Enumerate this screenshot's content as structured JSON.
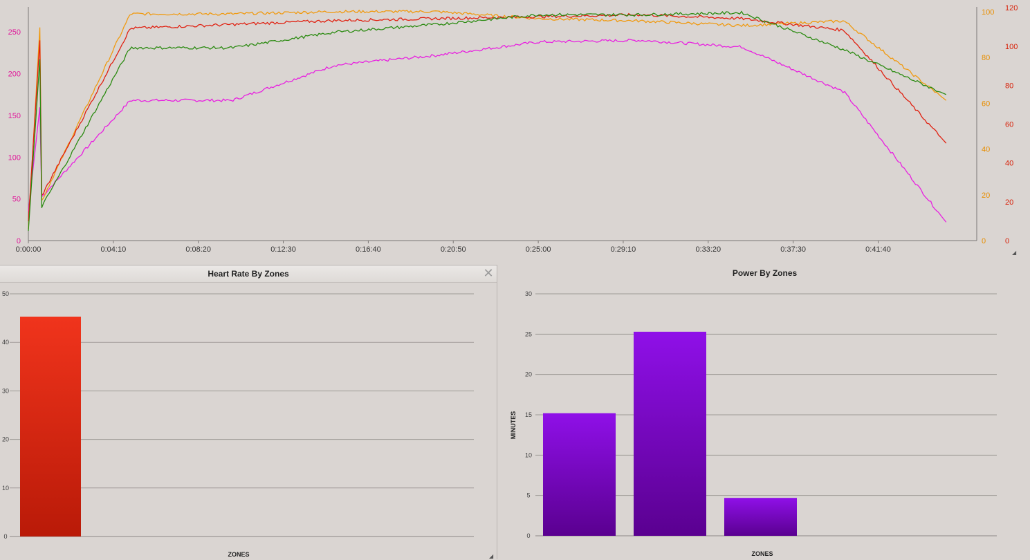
{
  "top_chart": {
    "x_ticks": [
      "0:00:00",
      "0:04:10",
      "0:08:20",
      "0:12:30",
      "0:16:40",
      "0:20:50",
      "0:25:00",
      "0:29:10",
      "0:33:20",
      "0:37:30",
      "0:41:40"
    ],
    "left_axis": {
      "ticks": [
        "0",
        "50",
        "100",
        "150",
        "200",
        "250"
      ],
      "color": "#e0189a"
    },
    "right_axis_1": {
      "ticks": [
        "0",
        "20",
        "40",
        "60",
        "80",
        "100"
      ],
      "color": "#e88e00"
    },
    "right_axis_2": {
      "ticks": [
        "0",
        "20",
        "40",
        "60",
        "80",
        "100",
        "120"
      ],
      "color": "#d81e06"
    },
    "series_colors": {
      "power": "#e820e0",
      "cadence": "#f09a10",
      "heart_rate": "#e02010",
      "speed": "#2a8a10"
    }
  },
  "hr_panel": {
    "title": "Heart Rate By Zones",
    "close_icon": "close-icon",
    "xlabel": "ZONES",
    "y_ticks": [
      "0",
      "10",
      "20",
      "30",
      "40",
      "50"
    ]
  },
  "power_panel": {
    "title": "Power By Zones",
    "xlabel": "ZONES",
    "ylabel": "MINUTES",
    "y_ticks": [
      "0",
      "5",
      "10",
      "15",
      "20",
      "25",
      "30"
    ]
  },
  "chart_data": [
    {
      "type": "line",
      "x": [
        0,
        5,
        10,
        15,
        20,
        25,
        30,
        35,
        40,
        45
      ],
      "x_unit": "minutes",
      "xlim": [
        0,
        46.5
      ],
      "series": [
        {
          "values": [
            35,
            168,
            168,
            210,
            222,
            238,
            240,
            232,
            178,
            22
          ],
          "axis": "left",
          "ylim": [
            0,
            280
          ]
        },
        {
          "values": [
            5,
            97,
            97,
            98,
            98,
            95,
            94,
            92,
            94,
            60
          ],
          "axis": "right_1",
          "ylim": [
            0,
            100
          ]
        },
        {
          "values": [
            10,
            109,
            111,
            113,
            114,
            115,
            116,
            114,
            108,
            50
          ],
          "axis": "right_2",
          "ylim": [
            0,
            120
          ]
        },
        {
          "values": [
            5,
            99,
            99,
            107,
            111,
            116,
            116,
            117,
            98,
            75
          ],
          "axis": "right_2",
          "ylim": [
            0,
            120
          ]
        }
      ]
    },
    {
      "type": "bar",
      "title": "Heart Rate By Zones",
      "xlabel": "ZONES",
      "values": [
        45.3
      ],
      "ylim": [
        0,
        50
      ],
      "colors": [
        "#f0341c",
        "#b91a08"
      ]
    },
    {
      "type": "bar",
      "title": "Power By Zones",
      "xlabel": "ZONES",
      "ylabel": "MINUTES",
      "values": [
        15.2,
        25.3,
        4.7
      ],
      "ylim": [
        0,
        30
      ],
      "colors": [
        "#8f10e8",
        "#5a0090"
      ]
    }
  ]
}
